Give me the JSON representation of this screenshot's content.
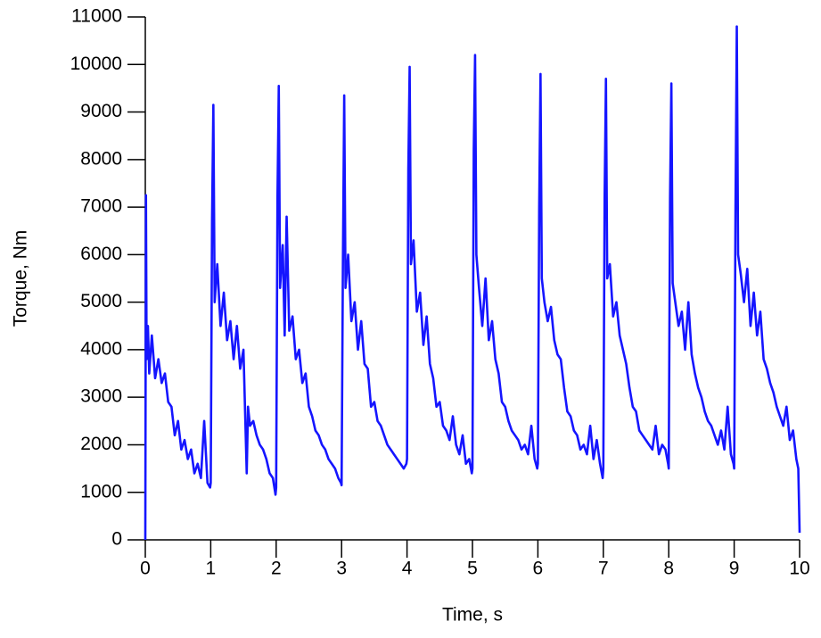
{
  "chart_data": {
    "type": "line",
    "x_label": "Time, s",
    "y_label": "Torque, Nm",
    "xlim": [
      0,
      10
    ],
    "xticks": [
      0,
      1,
      2,
      3,
      4,
      5,
      6,
      7,
      8,
      9,
      10
    ],
    "ylim": [
      0,
      11000
    ],
    "yticks": [
      0,
      1000,
      2000,
      3000,
      4000,
      5000,
      6000,
      7000,
      8000,
      9000,
      10000,
      11000
    ],
    "series": [
      {
        "color": "#1515ff",
        "x": [
          0,
          0.01,
          0.02,
          0.04,
          0.06,
          0.1,
          0.15,
          0.2,
          0.25,
          0.3,
          0.35,
          0.4,
          0.45,
          0.5,
          0.55,
          0.6,
          0.65,
          0.7,
          0.75,
          0.8,
          0.85,
          0.9,
          0.95,
          0.99,
          1,
          1.02,
          1.04,
          1.06,
          1.1,
          1.15,
          1.2,
          1.25,
          1.3,
          1.35,
          1.4,
          1.45,
          1.5,
          1.55,
          1.57,
          1.6,
          1.65,
          1.7,
          1.75,
          1.8,
          1.85,
          1.9,
          1.95,
          1.99,
          2,
          2.02,
          2.04,
          2.06,
          2.1,
          2.13,
          2.16,
          2.2,
          2.25,
          2.3,
          2.35,
          2.4,
          2.45,
          2.5,
          2.55,
          2.6,
          2.65,
          2.7,
          2.75,
          2.8,
          2.85,
          2.9,
          2.95,
          2.99,
          3,
          3.02,
          3.04,
          3.06,
          3.1,
          3.15,
          3.2,
          3.25,
          3.3,
          3.35,
          3.4,
          3.45,
          3.5,
          3.55,
          3.6,
          3.65,
          3.7,
          3.75,
          3.8,
          3.85,
          3.9,
          3.95,
          3.99,
          4,
          4.02,
          4.04,
          4.06,
          4.1,
          4.15,
          4.2,
          4.25,
          4.3,
          4.35,
          4.4,
          4.45,
          4.5,
          4.55,
          4.6,
          4.65,
          4.7,
          4.75,
          4.8,
          4.85,
          4.9,
          4.95,
          4.99,
          5,
          5.02,
          5.04,
          5.06,
          5.1,
          5.15,
          5.2,
          5.25,
          5.3,
          5.35,
          5.4,
          5.45,
          5.5,
          5.55,
          5.6,
          5.65,
          5.7,
          5.75,
          5.8,
          5.85,
          5.9,
          5.95,
          5.99,
          6,
          6.02,
          6.04,
          6.06,
          6.1,
          6.15,
          6.2,
          6.25,
          6.3,
          6.35,
          6.4,
          6.45,
          6.5,
          6.55,
          6.6,
          6.65,
          6.7,
          6.75,
          6.8,
          6.85,
          6.9,
          6.95,
          6.99,
          7,
          7.02,
          7.04,
          7.06,
          7.1,
          7.15,
          7.2,
          7.25,
          7.3,
          7.35,
          7.4,
          7.45,
          7.5,
          7.55,
          7.6,
          7.65,
          7.7,
          7.75,
          7.8,
          7.85,
          7.9,
          7.95,
          7.99,
          8,
          8.02,
          8.04,
          8.06,
          8.1,
          8.15,
          8.2,
          8.25,
          8.3,
          8.35,
          8.4,
          8.45,
          8.5,
          8.55,
          8.6,
          8.65,
          8.7,
          8.75,
          8.8,
          8.85,
          8.9,
          8.95,
          8.99,
          9,
          9.02,
          9.04,
          9.06,
          9.1,
          9.15,
          9.2,
          9.25,
          9.3,
          9.35,
          9.4,
          9.45,
          9.5,
          9.55,
          9.6,
          9.65,
          9.7,
          9.75,
          9.8,
          9.85,
          9.9,
          9.95,
          9.98,
          10
        ],
        "values": [
          0,
          7250,
          3800,
          4500,
          3500,
          4300,
          3400,
          3800,
          3300,
          3500,
          2900,
          2800,
          2200,
          2500,
          1900,
          2100,
          1700,
          1900,
          1400,
          1600,
          1300,
          2500,
          1200,
          1100,
          1200,
          6700,
          9150,
          5000,
          5800,
          4500,
          5200,
          4200,
          4600,
          3800,
          4500,
          3600,
          4000,
          1400,
          2800,
          2400,
          2500,
          2200,
          2000,
          1900,
          1700,
          1400,
          1300,
          950,
          1100,
          7200,
          9550,
          5300,
          6200,
          4300,
          6800,
          4400,
          4700,
          3800,
          4000,
          3300,
          3500,
          2800,
          2600,
          2300,
          2200,
          2000,
          1900,
          1700,
          1600,
          1500,
          1300,
          1200,
          1150,
          5800,
          9350,
          5300,
          6000,
          4600,
          5000,
          4000,
          4600,
          3700,
          3600,
          2800,
          2900,
          2500,
          2400,
          2200,
          2000,
          1900,
          1800,
          1700,
          1600,
          1500,
          1600,
          1700,
          7800,
          9950,
          5800,
          6300,
          4800,
          5200,
          4100,
          4700,
          3700,
          3400,
          2800,
          2900,
          2400,
          2300,
          2100,
          2600,
          2000,
          1800,
          2200,
          1600,
          1700,
          1400,
          1500,
          8200,
          10200,
          6000,
          5300,
          4500,
          5500,
          4200,
          4600,
          3800,
          3500,
          2900,
          2800,
          2500,
          2300,
          2200,
          2100,
          1900,
          2000,
          1800,
          2400,
          1700,
          1500,
          1600,
          7000,
          9800,
          5500,
          5000,
          4600,
          4900,
          4200,
          3900,
          3800,
          3200,
          2700,
          2600,
          2300,
          2200,
          1900,
          2000,
          1800,
          2400,
          1700,
          2100,
          1600,
          1300,
          1500,
          7200,
          9700,
          5500,
          5800,
          4700,
          5000,
          4300,
          4000,
          3700,
          3200,
          2800,
          2700,
          2300,
          2200,
          2100,
          2000,
          1900,
          2400,
          1800,
          2000,
          1900,
          1600,
          1500,
          7200,
          9600,
          5400,
          5000,
          4500,
          4800,
          4000,
          5000,
          3900,
          3500,
          3200,
          3000,
          2700,
          2500,
          2400,
          2200,
          2000,
          2300,
          1900,
          2800,
          1800,
          1600,
          1500,
          6900,
          10800,
          6000,
          5600,
          5000,
          5700,
          4500,
          5200,
          4300,
          4800,
          3800,
          3600,
          3300,
          3100,
          2800,
          2600,
          2400,
          2800,
          2100,
          2300,
          1700,
          1500,
          150
        ]
      }
    ]
  }
}
